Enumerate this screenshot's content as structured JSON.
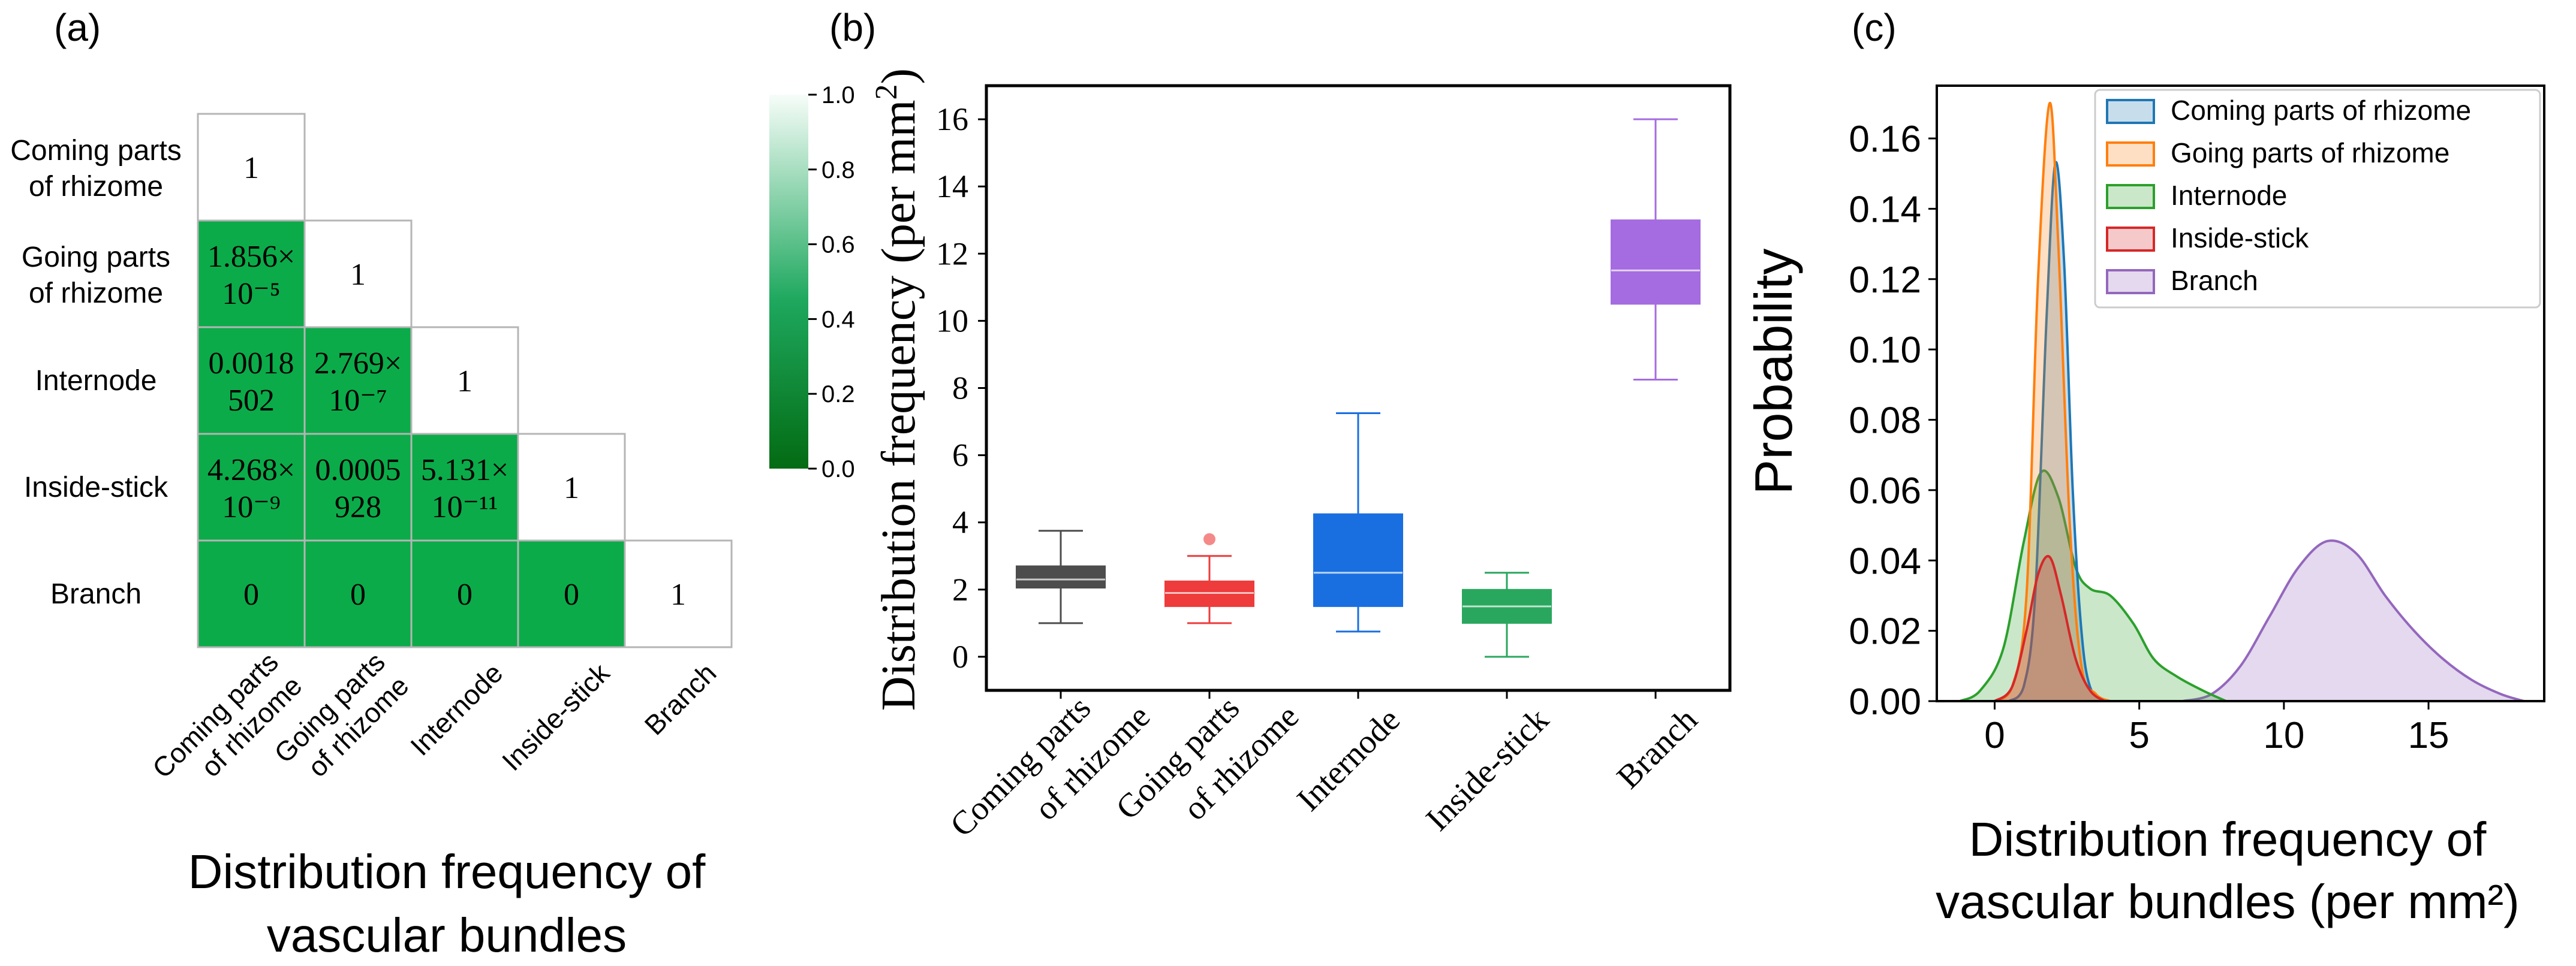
{
  "colors": {
    "heat_strong": "#0bab49",
    "heat_weak": "#ffffff",
    "colorbar_low": "#036b13",
    "colorbar_mid": "#1ea85e",
    "colorbar_high": "#f7fdf9",
    "box_coming": "#4d4d4d",
    "box_going": "#ee3b3b",
    "box_internode": "#1a6fe0",
    "box_inside": "#2aa75e",
    "box_branch": "#a56be0",
    "kde_coming": "#1f77b4",
    "kde_going": "#ff7f0e",
    "kde_internode": "#2ca02c",
    "kde_inside": "#d62728",
    "kde_branch": "#9467bd"
  },
  "chart_data": [
    {
      "panel_label": "(a)",
      "type": "heatmap",
      "title": "Distribution frequency of vascular bundles",
      "title_lines": [
        "Distribution frequency of",
        "vascular bundles"
      ],
      "categories": [
        "Coming parts of rhizome",
        "Going parts of rhizome",
        "Internode",
        "Inside-stick",
        "Branch"
      ],
      "row_labels": [
        [
          "Coming parts",
          "of rhizome"
        ],
        [
          "Going parts",
          "of rhizome"
        ],
        [
          "Internode"
        ],
        [
          "Inside-stick"
        ],
        [
          "Branch"
        ]
      ],
      "col_labels": [
        [
          "Coming parts",
          "of rhizome"
        ],
        [
          "Going parts",
          "of rhizome"
        ],
        [
          "Internode"
        ],
        [
          "Inside-stick"
        ],
        [
          "Branch"
        ]
      ],
      "values": [
        [
          1,
          null,
          null,
          null,
          null
        ],
        [
          1.856e-05,
          1,
          null,
          null,
          null
        ],
        [
          0.0018502,
          2.769e-07,
          1,
          null,
          null
        ],
        [
          4.268e-09,
          0.0005928,
          5.131e-11,
          1,
          null
        ],
        [
          0,
          0,
          0,
          0,
          1
        ]
      ],
      "cell_text": [
        [
          [
            "1"
          ],
          null,
          null,
          null,
          null
        ],
        [
          [
            "1.856×",
            "10⁻⁵"
          ],
          [
            "1"
          ],
          null,
          null,
          null
        ],
        [
          [
            "0.0018",
            "502"
          ],
          [
            "2.769×",
            "10⁻⁷"
          ],
          [
            "1"
          ],
          null,
          null
        ],
        [
          [
            "4.268×",
            "10⁻⁹"
          ],
          [
            "0.0005",
            "928"
          ],
          [
            "5.131×",
            "10⁻¹¹"
          ],
          [
            "1"
          ],
          null
        ],
        [
          [
            "0"
          ],
          [
            "0"
          ],
          [
            "0"
          ],
          [
            "0"
          ],
          [
            "1"
          ]
        ]
      ],
      "colorbar": {
        "range": [
          0.0,
          1.0
        ],
        "ticks": [
          "0.0",
          "0.2",
          "0.4",
          "0.6",
          "0.8",
          "1.0"
        ]
      }
    },
    {
      "panel_label": "(b)",
      "type": "box",
      "ylabel": "Distribution frequency (per mm²)",
      "ylabel_main": "Distribution frequency (per mm",
      "ylabel_sup": "2",
      "ylabel_end": ")",
      "ylim": [
        -1,
        17
      ],
      "yticks": [
        0,
        2,
        4,
        6,
        8,
        10,
        12,
        14,
        16
      ],
      "categories": [
        "Coming parts of rhizome",
        "Going parts of rhizome",
        "Internode",
        "Inside-stick",
        "Branch"
      ],
      "category_lines": [
        [
          "Coming parts",
          "of rhizome"
        ],
        [
          "Going parts",
          "of rhizome"
        ],
        [
          "Internode"
        ],
        [
          "Inside-stick"
        ],
        [
          "Branch"
        ]
      ],
      "boxes": [
        {
          "name": "Coming parts of rhizome",
          "whisker_low": 1.0,
          "q1": 2.05,
          "median": 2.3,
          "q3": 2.7,
          "whisker_high": 3.75,
          "outliers": []
        },
        {
          "name": "Going parts of rhizome",
          "whisker_low": 1.0,
          "q1": 1.5,
          "median": 1.9,
          "q3": 2.25,
          "whisker_high": 3.0,
          "outliers": [
            3.5
          ]
        },
        {
          "name": "Internode",
          "whisker_low": 0.75,
          "q1": 1.5,
          "median": 2.5,
          "q3": 4.25,
          "whisker_high": 7.25,
          "outliers": []
        },
        {
          "name": "Inside-stick",
          "whisker_low": 0.0,
          "q1": 1.0,
          "median": 1.5,
          "q3": 2.0,
          "whisker_high": 2.5,
          "outliers": []
        },
        {
          "name": "Branch",
          "whisker_low": 8.25,
          "q1": 10.5,
          "median": 11.5,
          "q3": 13.0,
          "whisker_high": 16.0,
          "outliers": []
        }
      ]
    },
    {
      "panel_label": "(c)",
      "type": "area",
      "xlabel": "Distribution frequency of vascular bundles (per mm²)",
      "xlabel_lines": [
        "Distribution frequency of",
        "vascular bundles (per mm²)"
      ],
      "ylabel": "Probability",
      "xlim": [
        -2,
        19
      ],
      "ylim": [
        0,
        0.175
      ],
      "xticks": [
        0,
        5,
        10,
        15
      ],
      "yticks": [
        "0.00",
        "0.02",
        "0.04",
        "0.06",
        "0.08",
        "0.10",
        "0.12",
        "0.14",
        "0.16"
      ],
      "legend_position": "top-right",
      "series": [
        {
          "name": "Coming parts of rhizome",
          "x": [
            0.5,
            1.0,
            1.4,
            1.8,
            2.1,
            2.4,
            2.7,
            3.0,
            3.3,
            3.8
          ],
          "y": [
            0,
            0.004,
            0.03,
            0.11,
            0.153,
            0.125,
            0.06,
            0.02,
            0.004,
            0
          ]
        },
        {
          "name": "Going parts of rhizome",
          "x": [
            0.0,
            0.6,
            1.1,
            1.5,
            1.9,
            2.2,
            2.6,
            3.0,
            3.5,
            4.0
          ],
          "y": [
            0,
            0.004,
            0.03,
            0.12,
            0.17,
            0.13,
            0.05,
            0.01,
            0.002,
            0
          ]
        },
        {
          "name": "Internode",
          "x": [
            -1.2,
            -0.5,
            0.3,
            1.0,
            1.6,
            2.2,
            2.8,
            3.3,
            4.0,
            4.8,
            5.5,
            6.3,
            7.2,
            8.0
          ],
          "y": [
            0,
            0.003,
            0.015,
            0.045,
            0.065,
            0.058,
            0.038,
            0.032,
            0.03,
            0.022,
            0.012,
            0.007,
            0.003,
            0
          ]
        },
        {
          "name": "Inside-stick",
          "x": [
            0.0,
            0.6,
            1.1,
            1.5,
            1.9,
            2.3,
            2.8,
            3.3,
            3.8
          ],
          "y": [
            0,
            0.004,
            0.02,
            0.036,
            0.041,
            0.03,
            0.012,
            0.003,
            0
          ]
        },
        {
          "name": "Branch",
          "x": [
            6.5,
            7.5,
            8.5,
            9.5,
            10.5,
            11.5,
            12.5,
            13.5,
            14.5,
            15.5,
            16.5,
            17.5,
            18.3
          ],
          "y": [
            0,
            0.002,
            0.01,
            0.024,
            0.038,
            0.0455,
            0.042,
            0.03,
            0.02,
            0.012,
            0.006,
            0.002,
            0
          ]
        }
      ]
    }
  ]
}
